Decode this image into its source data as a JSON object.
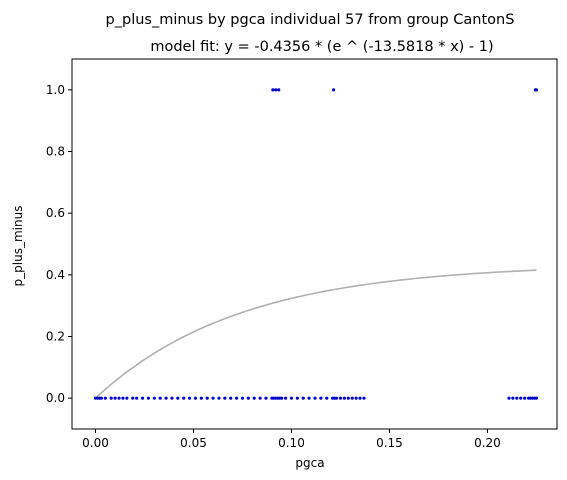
{
  "chart_data": {
    "type": "scatter",
    "title_line1": "p_plus_minus by pgca individual 57 from group CantonS",
    "title_line2": "model fit: y = -0.4356 * (e ^ (-13.5818 * x) - 1)",
    "xlabel": "pgca",
    "ylabel": "p_plus_minus",
    "xlim": [
      -0.012,
      0.2355
    ],
    "ylim": [
      -0.1,
      1.1
    ],
    "xticks": [
      0.0,
      0.05,
      0.1,
      0.15,
      0.2
    ],
    "xtick_labels": [
      "0.00",
      "0.05",
      "0.10",
      "0.15",
      "0.20"
    ],
    "yticks": [
      0.0,
      0.2,
      0.4,
      0.6,
      0.8,
      1.0
    ],
    "ytick_labels": [
      "0.0",
      "0.2",
      "0.4",
      "0.6",
      "0.8",
      "1.0"
    ],
    "grid": false,
    "point_color": "#0000cc",
    "fit_color": "#b0b0b0",
    "fit": {
      "a": -0.4356,
      "b": -13.5818,
      "x_range": [
        0.0,
        0.225
      ]
    },
    "points": {
      "x": [
        0.0,
        0.001,
        0.002,
        0.003,
        0.005,
        0.008,
        0.01,
        0.012,
        0.014,
        0.016,
        0.019,
        0.021,
        0.024,
        0.027,
        0.03,
        0.033,
        0.036,
        0.039,
        0.042,
        0.045,
        0.048,
        0.051,
        0.054,
        0.057,
        0.06,
        0.063,
        0.066,
        0.069,
        0.072,
        0.075,
        0.078,
        0.081,
        0.084,
        0.087,
        0.09,
        0.091,
        0.092,
        0.093,
        0.094,
        0.095,
        0.097,
        0.1,
        0.103,
        0.106,
        0.109,
        0.112,
        0.115,
        0.118,
        0.121,
        0.122,
        0.123,
        0.125,
        0.127,
        0.129,
        0.131,
        0.133,
        0.135,
        0.137,
        0.211,
        0.213,
        0.215,
        0.217,
        0.219,
        0.221,
        0.222,
        0.223,
        0.224,
        0.225,
        0.0905,
        0.092,
        0.0935,
        0.1215,
        0.2245,
        0.225
      ],
      "y": [
        0,
        0,
        0,
        0,
        0,
        0,
        0,
        0,
        0,
        0,
        0,
        0,
        0,
        0,
        0,
        0,
        0,
        0,
        0,
        0,
        0,
        0,
        0,
        0,
        0,
        0,
        0,
        0,
        0,
        0,
        0,
        0,
        0,
        0,
        0,
        0,
        0,
        0,
        0,
        0,
        0,
        0,
        0,
        0,
        0,
        0,
        0,
        0,
        0,
        0,
        0,
        0,
        0,
        0,
        0,
        0,
        0,
        0,
        0,
        0,
        0,
        0,
        0,
        0,
        0,
        0,
        0,
        0,
        1,
        1,
        1,
        1,
        1,
        1
      ]
    }
  }
}
